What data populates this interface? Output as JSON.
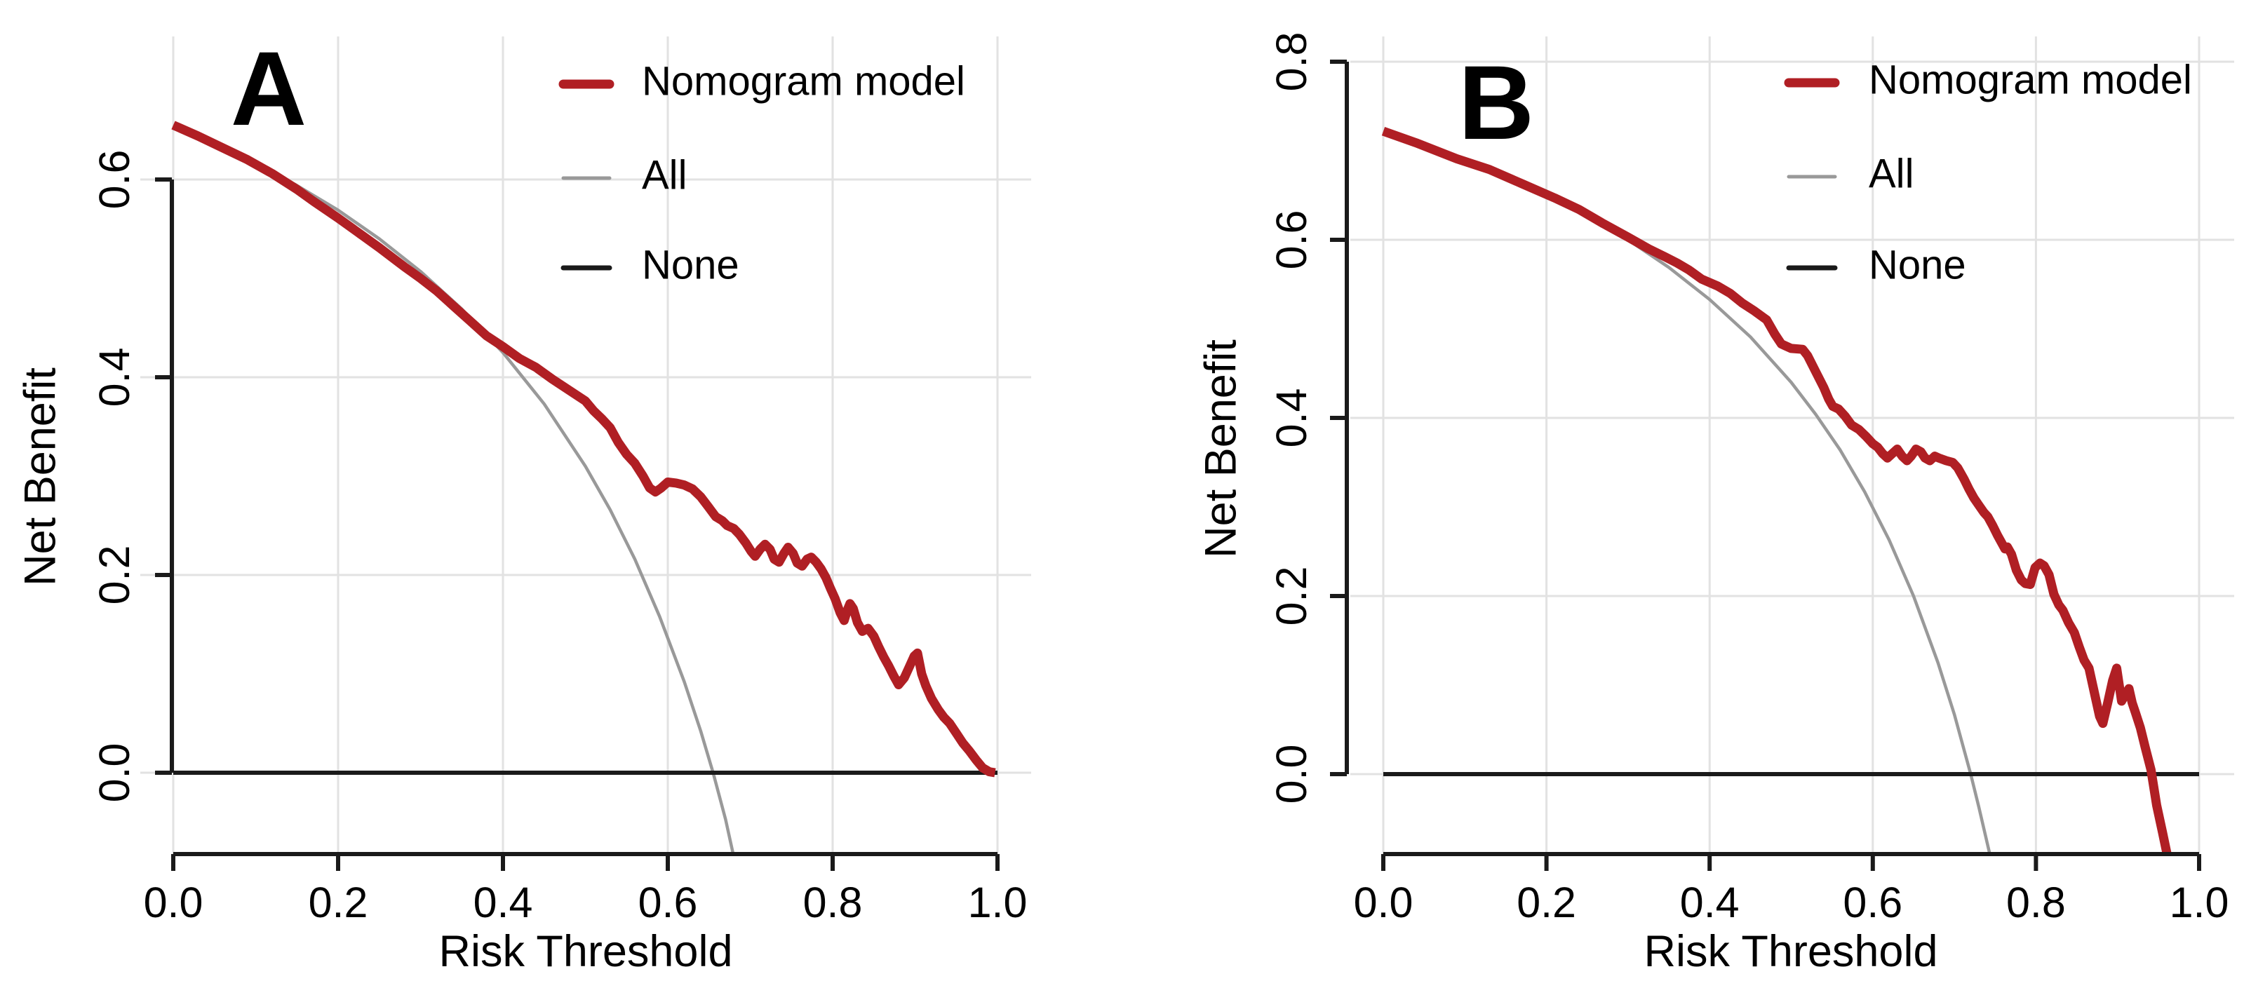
{
  "figure": {
    "background": "#ffffff",
    "grid_color": "#e2e2e2",
    "axis_color": "#1a1a1a",
    "text_color": "#000000"
  },
  "chart_data": [
    {
      "type": "line",
      "panel_label": "A",
      "xlabel": "Risk Threshold",
      "ylabel": "Net Benefit",
      "xlim": [
        0,
        1
      ],
      "ylim_visible": [
        -0.085,
        0.75
      ],
      "grid": true,
      "legend_position": "top-right-inside",
      "x_ticks": {
        "values": [
          0,
          0.2,
          0.4,
          0.6,
          0.8,
          1.0
        ],
        "labels": [
          "0.0",
          "0.2",
          "0.4",
          "0.6",
          "0.8",
          "1.0"
        ]
      },
      "y_ticks": {
        "values": [
          0,
          0.2,
          0.4,
          0.6
        ],
        "labels": [
          "0.0",
          "0.2",
          "0.4",
          "0.6"
        ]
      },
      "legend": [
        {
          "label": "Nomogram model",
          "color": "#b01f24",
          "line_width": 13
        },
        {
          "label": "All",
          "color": "#999999",
          "line_width": 5
        },
        {
          "label": "None",
          "color": "#1a1a1a",
          "line_width": 7
        }
      ],
      "series": [
        {
          "name": "All",
          "color": "#999999",
          "width": 4.5,
          "points": [
            [
              0,
              0.655
            ],
            [
              0.05,
              0.637
            ],
            [
              0.1,
              0.617
            ],
            [
              0.15,
              0.594
            ],
            [
              0.2,
              0.569
            ],
            [
              0.25,
              0.54
            ],
            [
              0.3,
              0.507
            ],
            [
              0.35,
              0.469
            ],
            [
              0.4,
              0.425
            ],
            [
              0.45,
              0.373
            ],
            [
              0.5,
              0.31
            ],
            [
              0.53,
              0.266
            ],
            [
              0.56,
              0.216
            ],
            [
              0.59,
              0.158
            ],
            [
              0.62,
              0.092
            ],
            [
              0.64,
              0.042
            ],
            [
              0.655,
              0
            ],
            [
              0.67,
              -0.047
            ],
            [
              0.684,
              -0.1
            ]
          ]
        },
        {
          "name": "None",
          "color": "#1a1a1a",
          "width": 6,
          "points": [
            [
              0,
              0
            ],
            [
              1,
              0
            ]
          ]
        },
        {
          "name": "Nomogram model",
          "color": "#b01f24",
          "width": 13,
          "points": [
            [
              0,
              0.655
            ],
            [
              0.03,
              0.644
            ],
            [
              0.06,
              0.632
            ],
            [
              0.09,
              0.62
            ],
            [
              0.12,
              0.606
            ],
            [
              0.15,
              0.59
            ],
            [
              0.17,
              0.578
            ],
            [
              0.2,
              0.561
            ],
            [
              0.23,
              0.543
            ],
            [
              0.25,
              0.531
            ],
            [
              0.28,
              0.512
            ],
            [
              0.3,
              0.5
            ],
            [
              0.32,
              0.487
            ],
            [
              0.34,
              0.472
            ],
            [
              0.36,
              0.457
            ],
            [
              0.38,
              0.442
            ],
            [
              0.4,
              0.431
            ],
            [
              0.42,
              0.419
            ],
            [
              0.44,
              0.41
            ],
            [
              0.46,
              0.398
            ],
            [
              0.48,
              0.387
            ],
            [
              0.5,
              0.376
            ],
            [
              0.51,
              0.366
            ],
            [
              0.52,
              0.358
            ],
            [
              0.53,
              0.349
            ],
            [
              0.54,
              0.334
            ],
            [
              0.55,
              0.322
            ],
            [
              0.56,
              0.313
            ],
            [
              0.57,
              0.3
            ],
            [
              0.578,
              0.288
            ],
            [
              0.585,
              0.284
            ],
            [
              0.592,
              0.288
            ],
            [
              0.6,
              0.294
            ],
            [
              0.61,
              0.293
            ],
            [
              0.62,
              0.291
            ],
            [
              0.63,
              0.287
            ],
            [
              0.64,
              0.279
            ],
            [
              0.65,
              0.268
            ],
            [
              0.658,
              0.259
            ],
            [
              0.666,
              0.255
            ],
            [
              0.672,
              0.25
            ],
            [
              0.68,
              0.247
            ],
            [
              0.687,
              0.241
            ],
            [
              0.695,
              0.232
            ],
            [
              0.701,
              0.224
            ],
            [
              0.706,
              0.219
            ],
            [
              0.712,
              0.226
            ],
            [
              0.718,
              0.231
            ],
            [
              0.724,
              0.226
            ],
            [
              0.729,
              0.216
            ],
            [
              0.735,
              0.213
            ],
            [
              0.741,
              0.222
            ],
            [
              0.746,
              0.228
            ],
            [
              0.752,
              0.222
            ],
            [
              0.757,
              0.212
            ],
            [
              0.763,
              0.209
            ],
            [
              0.769,
              0.216
            ],
            [
              0.774,
              0.218
            ],
            [
              0.78,
              0.213
            ],
            [
              0.786,
              0.206
            ],
            [
              0.792,
              0.197
            ],
            [
              0.797,
              0.187
            ],
            [
              0.803,
              0.176
            ],
            [
              0.809,
              0.162
            ],
            [
              0.814,
              0.154
            ],
            [
              0.818,
              0.165
            ],
            [
              0.821,
              0.171
            ],
            [
              0.825,
              0.166
            ],
            [
              0.83,
              0.152
            ],
            [
              0.836,
              0.143
            ],
            [
              0.843,
              0.146
            ],
            [
              0.85,
              0.138
            ],
            [
              0.856,
              0.127
            ],
            [
              0.862,
              0.117
            ],
            [
              0.868,
              0.108
            ],
            [
              0.874,
              0.098
            ],
            [
              0.88,
              0.089
            ],
            [
              0.887,
              0.096
            ],
            [
              0.893,
              0.107
            ],
            [
              0.899,
              0.118
            ],
            [
              0.903,
              0.121
            ],
            [
              0.908,
              0.1
            ],
            [
              0.913,
              0.088
            ],
            [
              0.92,
              0.075
            ],
            [
              0.928,
              0.064
            ],
            [
              0.935,
              0.056
            ],
            [
              0.942,
              0.05
            ],
            [
              0.95,
              0.04
            ],
            [
              0.958,
              0.03
            ],
            [
              0.966,
              0.022
            ],
            [
              0.974,
              0.013
            ],
            [
              0.982,
              0.005
            ],
            [
              0.99,
              0.001
            ],
            [
              0.997,
              0
            ]
          ]
        }
      ]
    },
    {
      "type": "line",
      "panel_label": "B",
      "xlabel": "Risk Threshold",
      "ylabel": "Net Benefit",
      "xlim": [
        0,
        1
      ],
      "ylim_visible": [
        -0.085,
        0.83
      ],
      "grid": true,
      "legend_position": "top-right-inside",
      "x_ticks": {
        "values": [
          0,
          0.2,
          0.4,
          0.6,
          0.8,
          1.0
        ],
        "labels": [
          "0.0",
          "0.2",
          "0.4",
          "0.6",
          "0.8",
          "1.0"
        ]
      },
      "y_ticks": {
        "values": [
          0,
          0.2,
          0.4,
          0.6,
          0.8
        ],
        "labels": [
          "0.0",
          "0.2",
          "0.4",
          "0.6",
          "0.8"
        ]
      },
      "legend": [
        {
          "label": "Nomogram model",
          "color": "#b01f24",
          "line_width": 13
        },
        {
          "label": "All",
          "color": "#999999",
          "line_width": 5
        },
        {
          "label": "None",
          "color": "#1a1a1a",
          "line_width": 7
        }
      ],
      "series": [
        {
          "name": "All",
          "color": "#999999",
          "width": 4.5,
          "points": [
            [
              0,
              0.72
            ],
            [
              0.05,
              0.705
            ],
            [
              0.1,
              0.689
            ],
            [
              0.15,
              0.671
            ],
            [
              0.2,
              0.65
            ],
            [
              0.25,
              0.627
            ],
            [
              0.3,
              0.6
            ],
            [
              0.35,
              0.569
            ],
            [
              0.4,
              0.533
            ],
            [
              0.45,
              0.491
            ],
            [
              0.5,
              0.44
            ],
            [
              0.53,
              0.404
            ],
            [
              0.56,
              0.364
            ],
            [
              0.59,
              0.317
            ],
            [
              0.62,
              0.263
            ],
            [
              0.65,
              0.2
            ],
            [
              0.68,
              0.125
            ],
            [
              0.7,
              0.067
            ],
            [
              0.72,
              0
            ],
            [
              0.73,
              -0.037
            ],
            [
              0.746,
              -0.1
            ]
          ]
        },
        {
          "name": "None",
          "color": "#1a1a1a",
          "width": 6,
          "points": [
            [
              0,
              0
            ],
            [
              1,
              0
            ]
          ]
        },
        {
          "name": "Nomogram model",
          "color": "#b01f24",
          "width": 13,
          "points": [
            [
              0,
              0.722
            ],
            [
              0.04,
              0.709
            ],
            [
              0.09,
              0.691
            ],
            [
              0.13,
              0.679
            ],
            [
              0.17,
              0.663
            ],
            [
              0.21,
              0.647
            ],
            [
              0.24,
              0.634
            ],
            [
              0.27,
              0.618
            ],
            [
              0.3,
              0.603
            ],
            [
              0.325,
              0.59
            ],
            [
              0.345,
              0.581
            ],
            [
              0.36,
              0.574
            ],
            [
              0.375,
              0.566
            ],
            [
              0.39,
              0.556
            ],
            [
              0.41,
              0.548
            ],
            [
              0.425,
              0.54
            ],
            [
              0.44,
              0.529
            ],
            [
              0.455,
              0.52
            ],
            [
              0.47,
              0.51
            ],
            [
              0.48,
              0.494
            ],
            [
              0.488,
              0.483
            ],
            [
              0.5,
              0.478
            ],
            [
              0.514,
              0.477
            ],
            [
              0.52,
              0.47
            ],
            [
              0.53,
              0.452
            ],
            [
              0.54,
              0.434
            ],
            [
              0.546,
              0.421
            ],
            [
              0.551,
              0.413
            ],
            [
              0.558,
              0.41
            ],
            [
              0.566,
              0.402
            ],
            [
              0.574,
              0.392
            ],
            [
              0.583,
              0.387
            ],
            [
              0.592,
              0.379
            ],
            [
              0.6,
              0.371
            ],
            [
              0.606,
              0.367
            ],
            [
              0.612,
              0.36
            ],
            [
              0.618,
              0.355
            ],
            [
              0.624,
              0.36
            ],
            [
              0.63,
              0.365
            ],
            [
              0.636,
              0.357
            ],
            [
              0.642,
              0.352
            ],
            [
              0.647,
              0.357
            ],
            [
              0.653,
              0.365
            ],
            [
              0.659,
              0.362
            ],
            [
              0.664,
              0.355
            ],
            [
              0.67,
              0.352
            ],
            [
              0.676,
              0.357
            ],
            [
              0.681,
              0.355
            ],
            [
              0.69,
              0.352
            ],
            [
              0.698,
              0.35
            ],
            [
              0.704,
              0.344
            ],
            [
              0.712,
              0.331
            ],
            [
              0.718,
              0.32
            ],
            [
              0.724,
              0.31
            ],
            [
              0.73,
              0.302
            ],
            [
              0.736,
              0.294
            ],
            [
              0.741,
              0.289
            ],
            [
              0.747,
              0.279
            ],
            [
              0.753,
              0.268
            ],
            [
              0.759,
              0.258
            ],
            [
              0.762,
              0.253
            ],
            [
              0.765,
              0.255
            ],
            [
              0.77,
              0.247
            ],
            [
              0.776,
              0.229
            ],
            [
              0.782,
              0.218
            ],
            [
              0.787,
              0.214
            ],
            [
              0.793,
              0.213
            ],
            [
              0.799,
              0.232
            ],
            [
              0.805,
              0.237
            ],
            [
              0.81,
              0.234
            ],
            [
              0.816,
              0.224
            ],
            [
              0.822,
              0.202
            ],
            [
              0.828,
              0.19
            ],
            [
              0.833,
              0.184
            ],
            [
              0.84,
              0.17
            ],
            [
              0.847,
              0.159
            ],
            [
              0.853,
              0.143
            ],
            [
              0.859,
              0.128
            ],
            [
              0.865,
              0.119
            ],
            [
              0.872,
              0.09
            ],
            [
              0.878,
              0.065
            ],
            [
              0.882,
              0.057
            ],
            [
              0.888,
              0.08
            ],
            [
              0.894,
              0.105
            ],
            [
              0.899,
              0.119
            ],
            [
              0.905,
              0.082
            ],
            [
              0.91,
              0.09
            ],
            [
              0.914,
              0.096
            ],
            [
              0.918,
              0.08
            ],
            [
              0.922,
              0.069
            ],
            [
              0.928,
              0.052
            ],
            [
              0.934,
              0.03
            ],
            [
              0.941,
              0.005
            ],
            [
              0.948,
              -0.035
            ],
            [
              0.955,
              -0.065
            ],
            [
              0.963,
              -0.1
            ]
          ]
        }
      ]
    }
  ]
}
